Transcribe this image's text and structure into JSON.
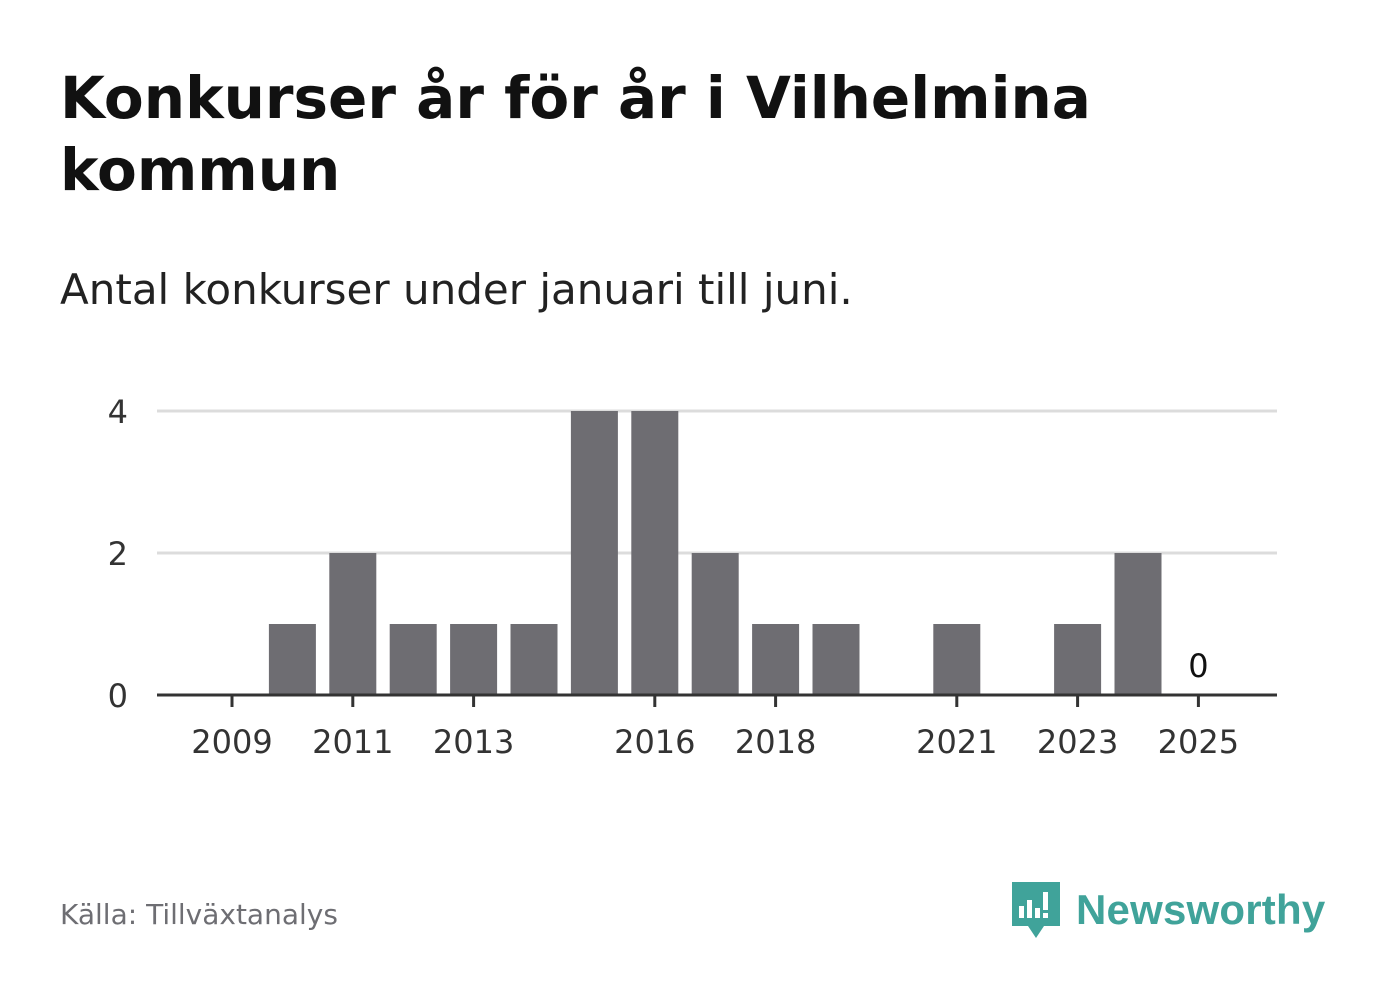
{
  "header": {
    "title": "Konkurser år för år i Vilhelmina kommun",
    "subtitle": "Antal konkurser under januari till juni."
  },
  "footer": {
    "source": "Källa: Tillväxtanalys",
    "brand": "Newsworthy",
    "brand_icon": "newsworthy-logo-icon",
    "brand_color": "#40a39a"
  },
  "chart_data": {
    "type": "bar",
    "categories": [
      "2009",
      "2010",
      "2011",
      "2012",
      "2013",
      "2014",
      "2015",
      "2016",
      "2017",
      "2018",
      "2019",
      "2020",
      "2021",
      "2022",
      "2023",
      "2024",
      "2025"
    ],
    "values": [
      0,
      1,
      2,
      1,
      1,
      1,
      4,
      4,
      2,
      1,
      1,
      0,
      1,
      0,
      1,
      2,
      0
    ],
    "x_tick_labels": [
      "2009",
      "2011",
      "2013",
      "2016",
      "2018",
      "2021",
      "2023",
      "2025"
    ],
    "y_ticks": [
      0,
      2,
      4
    ],
    "ylim": [
      0,
      4
    ],
    "grid": true,
    "bar_color": "#6e6d72",
    "data_labels": [
      {
        "category": "2025",
        "text": "0"
      }
    ],
    "xlabel": "",
    "ylabel": ""
  }
}
